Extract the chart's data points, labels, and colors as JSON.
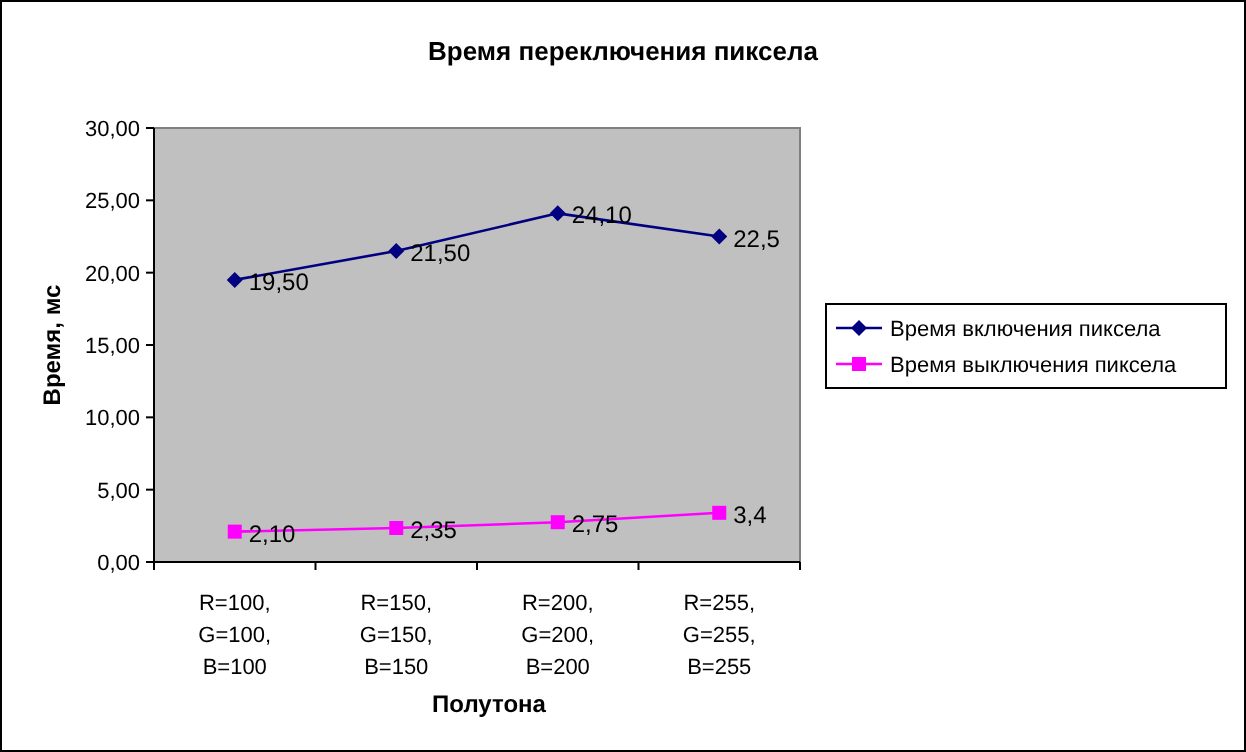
{
  "chart_data": {
    "type": "line",
    "title": "Время переключения пиксела",
    "xlabel": "Полутона",
    "ylabel": "Время, мс",
    "categories": [
      "R=100, G=100, B=100",
      "R=150, G=150, B=150",
      "R=200, G=200, B=200",
      "R=255, G=255, B=255"
    ],
    "series": [
      {
        "name": "Время включения пиксела",
        "color": "#000080",
        "marker": "diamond",
        "values": [
          19.5,
          21.5,
          24.1,
          22.5
        ],
        "value_labels": [
          "19,50",
          "21,50",
          "24,10",
          "22,5"
        ]
      },
      {
        "name": "Время выключения пиксела",
        "color": "#ff00ff",
        "marker": "square",
        "values": [
          2.1,
          2.35,
          2.75,
          3.4
        ],
        "value_labels": [
          "2,10",
          "2,35",
          "2,75",
          "3,4"
        ]
      }
    ],
    "ylim": [
      0,
      30
    ],
    "yticks": [
      {
        "value": 0,
        "label": "0,00"
      },
      {
        "value": 5,
        "label": "5,00"
      },
      {
        "value": 10,
        "label": "10,00"
      },
      {
        "value": 15,
        "label": "15,00"
      },
      {
        "value": 20,
        "label": "20,00"
      },
      {
        "value": 25,
        "label": "25,00"
      },
      {
        "value": 30,
        "label": "30,00"
      }
    ],
    "grid": false,
    "legend": "right",
    "line_style": "solid"
  }
}
